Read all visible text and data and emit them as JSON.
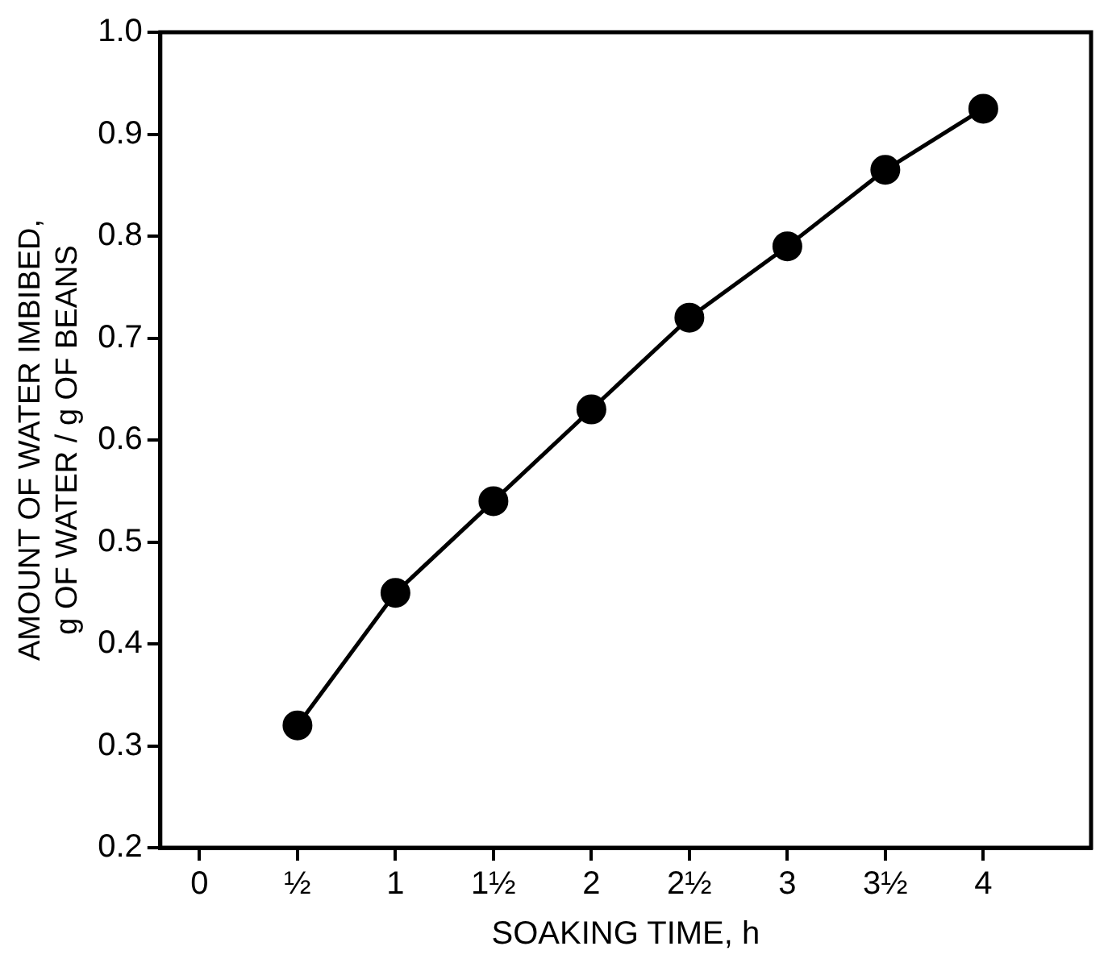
{
  "chart_data": {
    "type": "line",
    "xlabel": "SOAKING TIME, h",
    "ylabel": "AMOUNT OF WATER IMBIBED,\ng OF WATER / g OF BEANS",
    "x": [
      0.5,
      1,
      1.5,
      2,
      2.5,
      3,
      3.5,
      4
    ],
    "series": [
      {
        "color": "#000000",
        "values": [
          0.32,
          0.45,
          0.54,
          0.63,
          0.72,
          0.79,
          0.865,
          0.925
        ]
      }
    ],
    "xlim": [
      -0.2,
      4.55
    ],
    "xticks": [
      {
        "value": 0,
        "label": "0"
      },
      {
        "value": 0.5,
        "label": "½"
      },
      {
        "value": 1,
        "label": "1"
      },
      {
        "value": 1.5,
        "label": "1½"
      },
      {
        "value": 2,
        "label": "2"
      },
      {
        "value": 2.5,
        "label": "2½"
      },
      {
        "value": 3,
        "label": "3"
      },
      {
        "value": 3.5,
        "label": "3½"
      },
      {
        "value": 4,
        "label": "4"
      }
    ],
    "ylim": [
      0.2,
      1.0
    ],
    "yticks": [
      0.2,
      0.3,
      0.4,
      0.5,
      0.6,
      0.7,
      0.8,
      0.9,
      {
        "value": 1.0,
        "label": "1.0"
      }
    ],
    "grid": false,
    "legend": false,
    "marker": "circle",
    "line_style": "solid"
  }
}
